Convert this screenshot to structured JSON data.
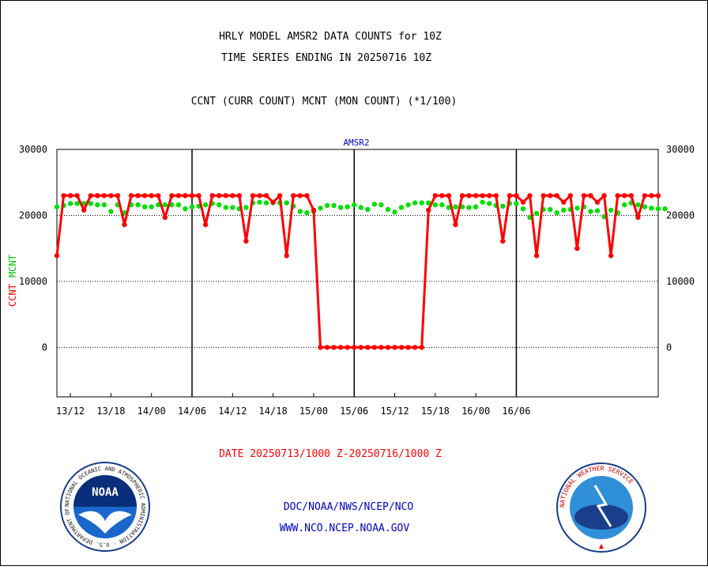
{
  "header": {
    "title_line1": "HRLY MODEL AMSR2 DATA COUNTS for 10Z",
    "title_line2": "TIME SERIES ENDING IN 20250716 10Z",
    "subtitle": "CCNT (CURR COUNT) MCNT (MON COUNT) (*1/100)",
    "panel_label": "AMSR2"
  },
  "footer": {
    "date_range": "DATE 20250713/1000 Z-20250716/1000 Z",
    "org_line": "DOC/NOAA/NWS/NCEP/NCO",
    "web_line": "WWW.NCO.NCEP.NOAA.GOV",
    "noaa_logo_text": "NOAA",
    "noaa_ring_text": "NATIONAL OCEANIC AND ATMOSPHERIC ADMINISTRATION · U.S. DEPARTMENT OF COMMERCE",
    "nws_ring_text": "NATIONAL WEATHER SERVICE"
  },
  "colors": {
    "ccnt": "#ff0000",
    "mcnt": "#00e000",
    "title": "#000000",
    "panel_label": "#0000c0",
    "footer_date": "#ff0000",
    "footer_links": "#0000c0"
  },
  "chart_data": {
    "type": "line",
    "title": "HRLY MODEL AMSR2 DATA COUNTS for 10Z",
    "xlabel": "",
    "ylabel_left": [
      "CCNT",
      "MCNT"
    ],
    "ylim": [
      -7500,
      30000
    ],
    "y_ticks": [
      0,
      10000,
      20000,
      30000
    ],
    "y_tick_labels": [
      "0",
      "10000",
      "20000",
      "30000"
    ],
    "y_gridlines": [
      0,
      10000,
      20000
    ],
    "x_start": "2025-07-13 10:00Z",
    "x_end": "2025-07-16 10:00Z",
    "x_hours_per_step": 1,
    "x_tick_labels": [
      "13/12",
      "13/18",
      "14/00",
      "14/06",
      "14/12",
      "14/18",
      "15/00",
      "15/06",
      "15/12",
      "15/18",
      "16/00",
      "16/06"
    ],
    "x_tick_hour_index": [
      2,
      8,
      14,
      20,
      26,
      32,
      38,
      44,
      50,
      56,
      62,
      68
    ],
    "day_boundary_hour_index": [
      20,
      44,
      68
    ],
    "series": [
      {
        "name": "CCNT",
        "color": "#ff0000",
        "values": [
          13900,
          23000,
          23000,
          23000,
          20800,
          23000,
          23000,
          23000,
          23000,
          23000,
          18600,
          23000,
          23000,
          23000,
          23000,
          23000,
          19700,
          23000,
          23000,
          23000,
          23000,
          23000,
          18600,
          23000,
          23000,
          23000,
          23000,
          23000,
          16100,
          23000,
          23000,
          23000,
          22000,
          23000,
          13900,
          23000,
          23000,
          23000,
          20800,
          0,
          0,
          0,
          0,
          0,
          0,
          0,
          0,
          0,
          0,
          0,
          0,
          0,
          0,
          0,
          0,
          20800,
          23000,
          23000,
          23000,
          18600,
          23000,
          23000,
          23000,
          23000,
          23000,
          23000,
          16100,
          23000,
          23000,
          22000,
          23000,
          13900,
          23000,
          23000,
          23000,
          22000,
          23000,
          15000,
          23000,
          23000,
          22000,
          23000,
          13900,
          23000,
          23000,
          23000,
          19700,
          23000,
          23000,
          23000
        ]
      },
      {
        "name": "MCNT",
        "color": "#00e000",
        "values": [
          21300,
          21500,
          21800,
          21800,
          21800,
          21800,
          21600,
          21600,
          20600,
          21600,
          20400,
          21600,
          21600,
          21300,
          21300,
          21600,
          21600,
          21600,
          21600,
          21000,
          21300,
          21400,
          21600,
          21800,
          21600,
          21200,
          21200,
          21000,
          21200,
          21900,
          22000,
          21900,
          21900,
          21900,
          21900,
          21400,
          20600,
          20400,
          20600,
          21100,
          21500,
          21500,
          21200,
          21300,
          21600,
          21200,
          20900,
          21700,
          21600,
          20900,
          20500,
          21200,
          21600,
          21900,
          21900,
          21900,
          21600,
          21600,
          21200,
          21300,
          21300,
          21200,
          21300,
          22000,
          21800,
          21500,
          21400,
          21800,
          21800,
          21000,
          19700,
          20300,
          20900,
          20900,
          20400,
          20800,
          20900,
          21100,
          21300,
          20600,
          20700,
          19800,
          20800,
          20400,
          21600,
          21900,
          21600,
          21300,
          21100,
          21000,
          21000
        ]
      }
    ],
    "legend": "none"
  }
}
